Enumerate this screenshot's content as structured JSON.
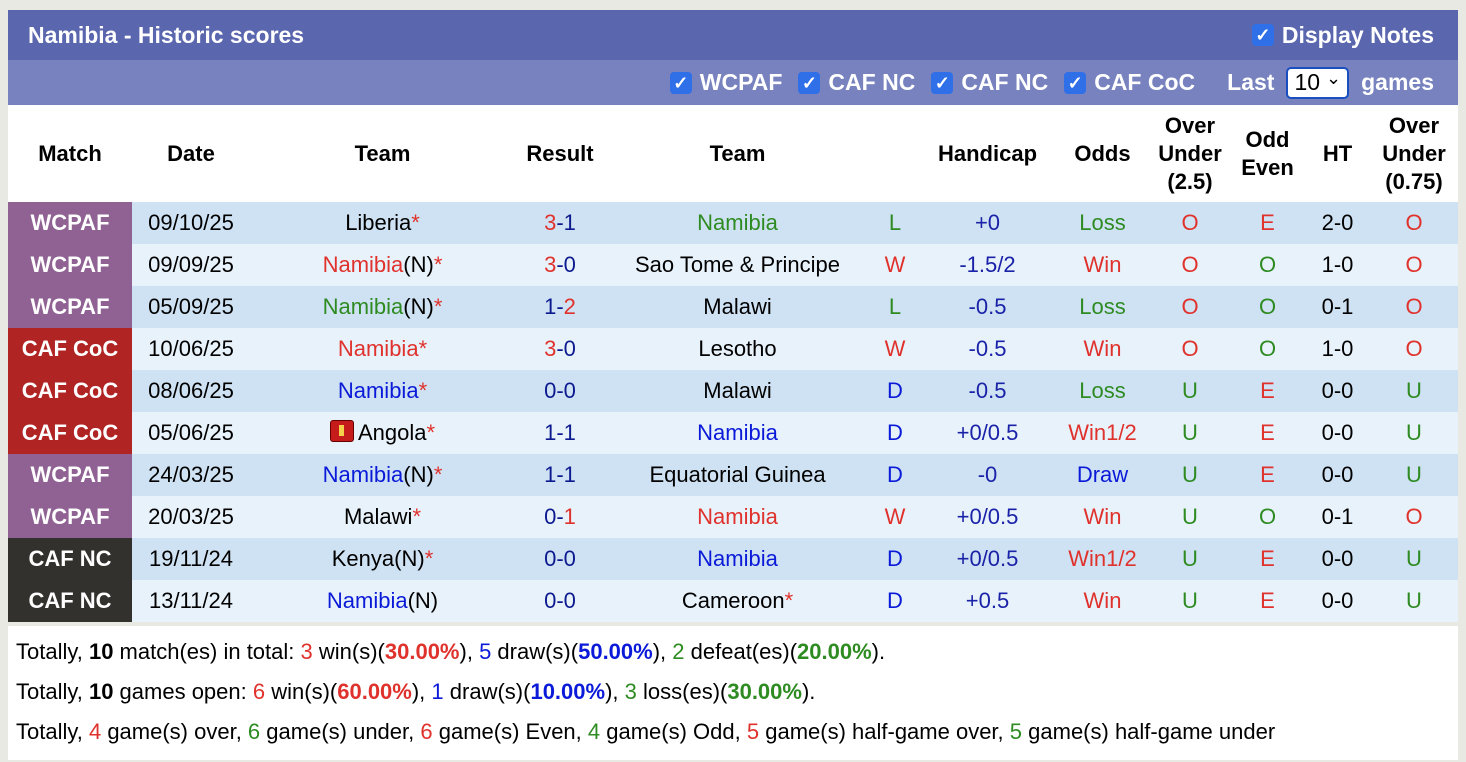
{
  "header": {
    "title": "Namibia - Historic scores",
    "display_notes_label": "Display Notes",
    "display_notes_checked": true
  },
  "filters": {
    "items": [
      {
        "label": "WCPAF",
        "checked": true
      },
      {
        "label": "CAF NC",
        "checked": true
      },
      {
        "label": "CAF NC",
        "checked": true
      },
      {
        "label": "CAF CoC",
        "checked": true
      }
    ],
    "last_label": "Last",
    "last_value": "10",
    "games_label": "games"
  },
  "colors": {
    "WCPAF": "#8f6293",
    "CAF CoC": "#b02424",
    "CAF NC": "#33312d",
    "header": "#5a66ad",
    "filter_bar": "#7782be"
  },
  "columns": [
    "Match",
    "Date",
    "Team",
    "Result",
    "Team",
    "",
    "Handicap",
    "Odds",
    "Over Under (2.5)",
    "Odd Even",
    "HT",
    "Over Under (0.75)"
  ],
  "rows": [
    {
      "match": "WCPAF",
      "date": "09/10/25",
      "home": {
        "name": "Liberia",
        "color": "black",
        "n": "",
        "star": "*"
      },
      "score": {
        "h": "3",
        "a": "1",
        "win": "h"
      },
      "away": {
        "name": "Namibia",
        "color": "green",
        "n": "",
        "star": ""
      },
      "wl": "L",
      "handicap": "+0",
      "odds": "Loss",
      "ou": "O",
      "oe": "E",
      "ht": "2-0",
      "ou075": "O"
    },
    {
      "match": "WCPAF",
      "date": "09/09/25",
      "home": {
        "name": "Namibia",
        "color": "red",
        "n": "(N)",
        "star": "*"
      },
      "score": {
        "h": "3",
        "a": "0",
        "win": "h"
      },
      "away": {
        "name": "Sao Tome & Principe",
        "color": "black",
        "n": "",
        "star": ""
      },
      "wl": "W",
      "handicap": "-1.5/2",
      "odds": "Win",
      "ou": "O",
      "oe": "O",
      "ht": "1-0",
      "ou075": "O"
    },
    {
      "match": "WCPAF",
      "date": "05/09/25",
      "home": {
        "name": "Namibia",
        "color": "green",
        "n": "(N)",
        "star": "*"
      },
      "score": {
        "h": "1",
        "a": "2",
        "win": "a"
      },
      "away": {
        "name": "Malawi",
        "color": "black",
        "n": "",
        "star": ""
      },
      "wl": "L",
      "handicap": "-0.5",
      "odds": "Loss",
      "ou": "O",
      "oe": "O",
      "ht": "0-1",
      "ou075": "O"
    },
    {
      "match": "CAF CoC",
      "date": "10/06/25",
      "home": {
        "name": "Namibia",
        "color": "red",
        "n": "",
        "star": "*"
      },
      "score": {
        "h": "3",
        "a": "0",
        "win": "h"
      },
      "away": {
        "name": "Lesotho",
        "color": "black",
        "n": "",
        "star": ""
      },
      "wl": "W",
      "handicap": "-0.5",
      "odds": "Win",
      "ou": "O",
      "oe": "O",
      "ht": "1-0",
      "ou075": "O"
    },
    {
      "match": "CAF CoC",
      "date": "08/06/25",
      "home": {
        "name": "Namibia",
        "color": "blue",
        "n": "",
        "star": "*"
      },
      "score": {
        "h": "0",
        "a": "0",
        "win": ""
      },
      "away": {
        "name": "Malawi",
        "color": "black",
        "n": "",
        "star": ""
      },
      "wl": "D",
      "handicap": "-0.5",
      "odds": "Loss",
      "ou": "U",
      "oe": "E",
      "ht": "0-0",
      "ou075": "U"
    },
    {
      "match": "CAF CoC",
      "date": "05/06/25",
      "home": {
        "name": "Angola",
        "color": "black",
        "n": "",
        "star": "*",
        "flag": true
      },
      "score": {
        "h": "1",
        "a": "1",
        "win": ""
      },
      "away": {
        "name": "Namibia",
        "color": "blue",
        "n": "",
        "star": ""
      },
      "wl": "D",
      "handicap": "+0/0.5",
      "odds": "Win1/2",
      "ou": "U",
      "oe": "E",
      "ht": "0-0",
      "ou075": "U"
    },
    {
      "match": "WCPAF",
      "date": "24/03/25",
      "home": {
        "name": "Namibia",
        "color": "blue",
        "n": "(N)",
        "star": "*"
      },
      "score": {
        "h": "1",
        "a": "1",
        "win": ""
      },
      "away": {
        "name": "Equatorial Guinea",
        "color": "black",
        "n": "",
        "star": ""
      },
      "wl": "D",
      "handicap": "-0",
      "odds": "Draw",
      "ou": "U",
      "oe": "E",
      "ht": "0-0",
      "ou075": "U"
    },
    {
      "match": "WCPAF",
      "date": "20/03/25",
      "home": {
        "name": "Malawi",
        "color": "black",
        "n": "",
        "star": "*"
      },
      "score": {
        "h": "0",
        "a": "1",
        "win": "a"
      },
      "away": {
        "name": "Namibia",
        "color": "red",
        "n": "",
        "star": ""
      },
      "wl": "W",
      "handicap": "+0/0.5",
      "odds": "Win",
      "ou": "U",
      "oe": "O",
      "ht": "0-1",
      "ou075": "O"
    },
    {
      "match": "CAF NC",
      "date": "19/11/24",
      "home": {
        "name": "Kenya",
        "color": "black",
        "n": "(N)",
        "star": "*"
      },
      "score": {
        "h": "0",
        "a": "0",
        "win": ""
      },
      "away": {
        "name": "Namibia",
        "color": "blue",
        "n": "",
        "star": ""
      },
      "wl": "D",
      "handicap": "+0/0.5",
      "odds": "Win1/2",
      "ou": "U",
      "oe": "E",
      "ht": "0-0",
      "ou075": "U"
    },
    {
      "match": "CAF NC",
      "date": "13/11/24",
      "home": {
        "name": "Namibia",
        "color": "blue",
        "n": "(N)",
        "star": ""
      },
      "score": {
        "h": "0",
        "a": "0",
        "win": ""
      },
      "away": {
        "name": "Cameroon",
        "color": "black",
        "n": "",
        "star": "*"
      },
      "wl": "D",
      "handicap": "+0.5",
      "odds": "Win",
      "ou": "U",
      "oe": "E",
      "ht": "0-0",
      "ou075": "U"
    }
  ],
  "summary": [
    [
      {
        "t": "Totally, "
      },
      {
        "t": "10",
        "c": "b"
      },
      {
        "t": " match(es) in total: "
      },
      {
        "t": "3",
        "c": "red"
      },
      {
        "t": " win(s)("
      },
      {
        "t": "30.00%",
        "c": "red"
      },
      {
        "t": "), "
      },
      {
        "t": "5",
        "c": "blue"
      },
      {
        "t": " draw(s)("
      },
      {
        "t": "50.00%",
        "c": "blue"
      },
      {
        "t": "), "
      },
      {
        "t": "2",
        "c": "green"
      },
      {
        "t": " defeat(es)("
      },
      {
        "t": "20.00%",
        "c": "green"
      },
      {
        "t": ")."
      }
    ],
    [
      {
        "t": "Totally, "
      },
      {
        "t": "10",
        "c": "b"
      },
      {
        "t": " games open: "
      },
      {
        "t": "6",
        "c": "red"
      },
      {
        "t": " win(s)("
      },
      {
        "t": "60.00%",
        "c": "red"
      },
      {
        "t": "), "
      },
      {
        "t": "1",
        "c": "blue"
      },
      {
        "t": " draw(s)("
      },
      {
        "t": "10.00%",
        "c": "blue"
      },
      {
        "t": "), "
      },
      {
        "t": "3",
        "c": "green"
      },
      {
        "t": " loss(es)("
      },
      {
        "t": "30.00%",
        "c": "green"
      },
      {
        "t": ")."
      }
    ],
    [
      {
        "t": "Totally, "
      },
      {
        "t": "4",
        "c": "red"
      },
      {
        "t": " game(s) over, "
      },
      {
        "t": "6",
        "c": "green"
      },
      {
        "t": " game(s) under, "
      },
      {
        "t": "6",
        "c": "red"
      },
      {
        "t": " game(s) Even, "
      },
      {
        "t": "4",
        "c": "green"
      },
      {
        "t": " game(s) Odd, "
      },
      {
        "t": "5",
        "c": "red"
      },
      {
        "t": " game(s) half-game over, "
      },
      {
        "t": "5",
        "c": "green"
      },
      {
        "t": " game(s) half-game under"
      }
    ]
  ]
}
